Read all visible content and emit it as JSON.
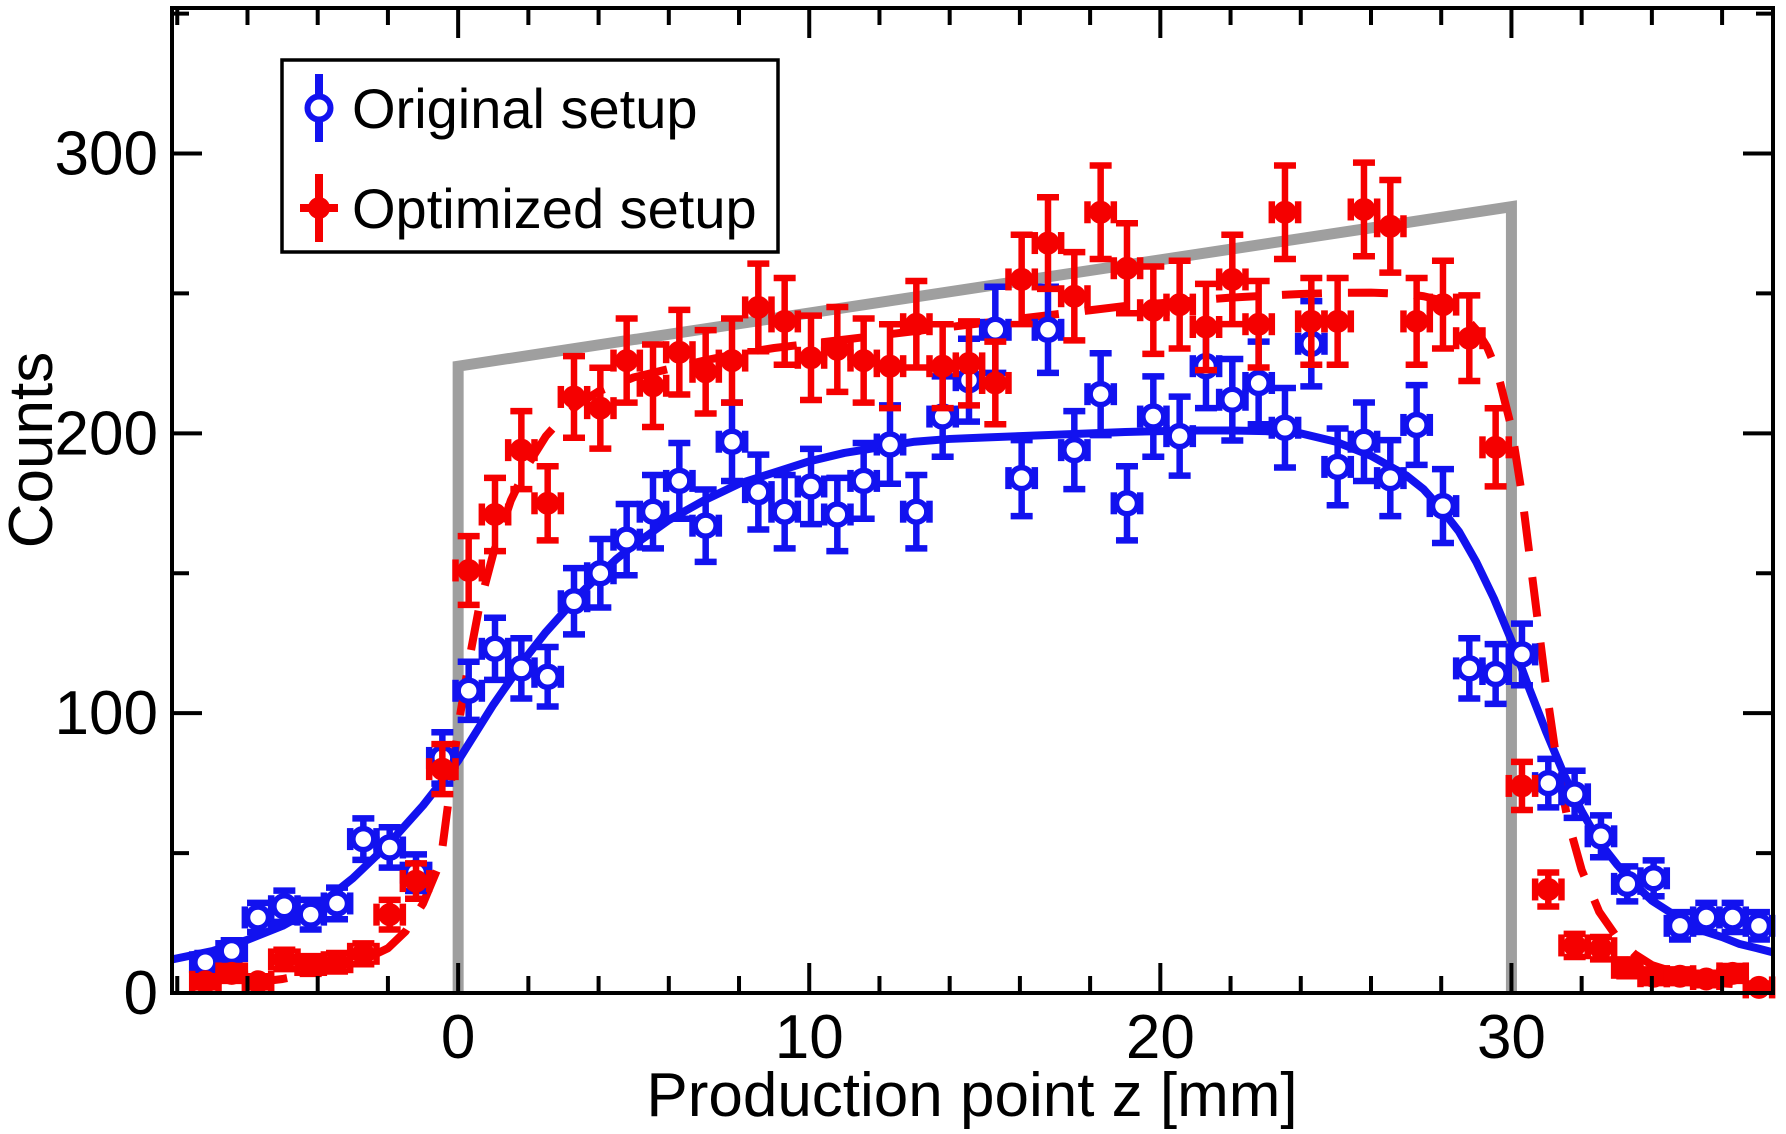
{
  "figure": {
    "description": "Comparison of measured production point distributions for two detector setups with fitted curves and true distribution"
  },
  "legend": {
    "items": [
      {
        "label": "Original setup",
        "series": "original",
        "marker": "open-circle",
        "color": "#1212ef"
      },
      {
        "label": "Optimized setup",
        "series": "optimized",
        "marker": "filled-circle",
        "color": "#f50000"
      }
    ]
  },
  "chart_data": {
    "type": "scatter",
    "title": "",
    "xlabel": "Production point z [mm]",
    "ylabel": "Counts",
    "xlim": [
      -8.15,
      37.45
    ],
    "ylim": [
      0,
      352
    ],
    "x_ticks_major": [
      0,
      10,
      20,
      30
    ],
    "x_tick_minor_step": 2,
    "y_ticks_major": [
      0,
      100,
      200,
      300
    ],
    "y_tick_minor_step": 50,
    "grid": "off",
    "legend_position": "top-left",
    "bin_half_width_mm": 0.375,
    "error_model": "poisson sqrt(N) vertical errors, half-bin horizontal errors",
    "colors": {
      "original": "#1212ef",
      "optimized": "#f50000",
      "true_line": "#9f9f9f"
    },
    "z": [
      -7.2,
      -6.45,
      -5.7,
      -4.95,
      -4.2,
      -3.45,
      -2.7,
      -1.95,
      -1.2,
      -0.45,
      0.3,
      1.05,
      1.8,
      2.55,
      3.3,
      4.05,
      4.8,
      5.55,
      6.3,
      7.05,
      7.8,
      8.55,
      9.3,
      10.05,
      10.8,
      11.55,
      12.3,
      13.05,
      13.8,
      14.55,
      15.3,
      16.05,
      16.8,
      17.55,
      18.3,
      19.05,
      19.8,
      20.55,
      21.3,
      22.05,
      22.8,
      23.55,
      24.3,
      25.05,
      25.8,
      26.55,
      27.3,
      28.05,
      28.8,
      29.55,
      30.3,
      31.05,
      31.8,
      32.55,
      33.3,
      34.05,
      34.8,
      35.55,
      36.3,
      37.05
    ],
    "series": [
      {
        "name": "Original setup",
        "key": "original",
        "marker": "open-circle",
        "fit_line": "solid",
        "counts": [
          11,
          15,
          27,
          31,
          28,
          32,
          55,
          52,
          43,
          84,
          108,
          123,
          116,
          113,
          140,
          150,
          162,
          172,
          183,
          167,
          197,
          179,
          172,
          181,
          171,
          183,
          196,
          172,
          206,
          219,
          237,
          184,
          237,
          194,
          214,
          175,
          206,
          199,
          224,
          212,
          218,
          202,
          232,
          188,
          197,
          184,
          203,
          174,
          116,
          114,
          121,
          75,
          71,
          56,
          39,
          41,
          24,
          27,
          27,
          24
        ]
      },
      {
        "name": "Optimized setup",
        "key": "optimized",
        "marker": "filled-circle",
        "fit_line": "dashed",
        "counts": [
          4,
          7,
          4,
          12,
          10,
          11,
          14,
          28,
          40,
          80,
          151,
          171,
          194,
          175,
          213,
          209,
          226,
          217,
          229,
          222,
          226,
          245,
          240,
          227,
          230,
          226,
          224,
          239,
          224,
          225,
          218,
          255,
          268,
          249,
          279,
          259,
          244,
          246,
          238,
          255,
          239,
          279,
          240,
          240,
          280,
          274,
          240,
          246,
          234,
          195,
          74,
          37,
          17,
          16,
          9,
          6,
          6,
          5,
          7,
          2
        ]
      }
    ],
    "fit_curves": [
      {
        "series": "original",
        "style": "solid",
        "color": "#1212ef",
        "points": [
          [
            -8.15,
            12
          ],
          [
            -7,
            15
          ],
          [
            -6,
            19
          ],
          [
            -5,
            24
          ],
          [
            -4,
            31
          ],
          [
            -3,
            41
          ],
          [
            -2,
            53
          ],
          [
            -1,
            67
          ],
          [
            -0.5,
            75
          ],
          [
            0,
            83
          ],
          [
            0.5,
            93
          ],
          [
            1,
            103
          ],
          [
            1.5,
            112
          ],
          [
            2,
            121
          ],
          [
            2.5,
            129
          ],
          [
            3,
            136
          ],
          [
            3.5,
            143
          ],
          [
            4,
            149
          ],
          [
            4.5,
            155
          ],
          [
            5,
            160
          ],
          [
            6,
            169
          ],
          [
            7,
            176
          ],
          [
            8,
            182
          ],
          [
            9,
            186
          ],
          [
            10,
            190
          ],
          [
            11,
            193
          ],
          [
            12,
            195
          ],
          [
            13,
            197
          ],
          [
            14,
            198
          ],
          [
            15,
            198.5
          ],
          [
            16,
            199
          ],
          [
            17,
            199.5
          ],
          [
            18,
            200
          ],
          [
            19,
            200.5
          ],
          [
            20,
            200.8
          ],
          [
            21,
            201
          ],
          [
            22,
            201
          ],
          [
            23,
            200.8
          ],
          [
            24,
            200
          ],
          [
            25,
            197
          ],
          [
            26,
            192
          ],
          [
            27,
            185
          ],
          [
            27.5,
            180
          ],
          [
            28,
            173
          ],
          [
            28.5,
            165
          ],
          [
            29,
            154
          ],
          [
            29.5,
            141
          ],
          [
            30,
            126
          ],
          [
            30.5,
            109
          ],
          [
            31,
            93
          ],
          [
            31.5,
            78
          ],
          [
            32,
            65
          ],
          [
            32.5,
            54
          ],
          [
            33,
            46
          ],
          [
            33.5,
            39
          ],
          [
            34,
            33
          ],
          [
            34.5,
            29
          ],
          [
            35,
            25
          ],
          [
            35.5,
            22
          ],
          [
            36,
            20
          ],
          [
            36.5,
            17.5
          ],
          [
            37,
            16
          ],
          [
            37.45,
            14.5
          ]
        ]
      },
      {
        "series": "optimized",
        "style": "dashed",
        "color": "#f50000",
        "points": [
          [
            -6,
            3.5
          ],
          [
            -5,
            5
          ],
          [
            -4,
            7.5
          ],
          [
            -3,
            11
          ],
          [
            -2.5,
            13
          ],
          [
            -2,
            16
          ],
          [
            -1.5,
            22
          ],
          [
            -1,
            32
          ],
          [
            -0.5,
            47
          ],
          [
            0,
            95
          ],
          [
            0.3,
            118
          ],
          [
            0.6,
            138
          ],
          [
            1,
            157
          ],
          [
            1.5,
            176
          ],
          [
            2,
            189
          ],
          [
            2.5,
            199
          ],
          [
            3,
            206
          ],
          [
            3.5,
            211
          ],
          [
            4,
            215
          ],
          [
            5,
            220
          ],
          [
            6,
            223
          ],
          [
            7,
            226
          ],
          [
            8,
            228.5
          ],
          [
            9,
            230.5
          ],
          [
            10,
            232
          ],
          [
            11,
            233.5
          ],
          [
            12,
            235
          ],
          [
            13,
            236.5
          ],
          [
            14,
            238
          ],
          [
            15,
            239.5
          ],
          [
            16,
            241
          ],
          [
            17,
            242.5
          ],
          [
            18,
            244
          ],
          [
            19,
            245.5
          ],
          [
            20,
            246.5
          ],
          [
            21,
            247.5
          ],
          [
            22,
            248.5
          ],
          [
            23,
            249.2
          ],
          [
            24,
            249.8
          ],
          [
            25,
            250.2
          ],
          [
            26,
            250.3
          ],
          [
            27,
            249.8
          ],
          [
            27.5,
            249
          ],
          [
            28,
            247.5
          ],
          [
            28.5,
            244
          ],
          [
            29,
            237
          ],
          [
            29.3,
            231
          ],
          [
            29.6,
            222
          ],
          [
            30,
            202
          ],
          [
            30.3,
            178
          ],
          [
            30.6,
            148
          ],
          [
            31,
            108
          ],
          [
            31.3,
            82
          ],
          [
            31.6,
            62
          ],
          [
            32,
            44
          ],
          [
            32.5,
            29
          ],
          [
            33,
            20
          ],
          [
            33.5,
            14
          ],
          [
            34,
            10
          ],
          [
            34.5,
            8
          ],
          [
            35,
            6
          ],
          [
            35.5,
            4.5
          ],
          [
            36,
            3.5
          ],
          [
            36.5,
            3
          ],
          [
            37,
            2.5
          ],
          [
            37.45,
            2
          ]
        ]
      }
    ],
    "true_distribution": {
      "name": "true production region (0-30 mm)",
      "color": "#9f9f9f",
      "points": [
        [
          0,
          0
        ],
        [
          0,
          224
        ],
        [
          30,
          281
        ],
        [
          30,
          0
        ]
      ]
    }
  }
}
